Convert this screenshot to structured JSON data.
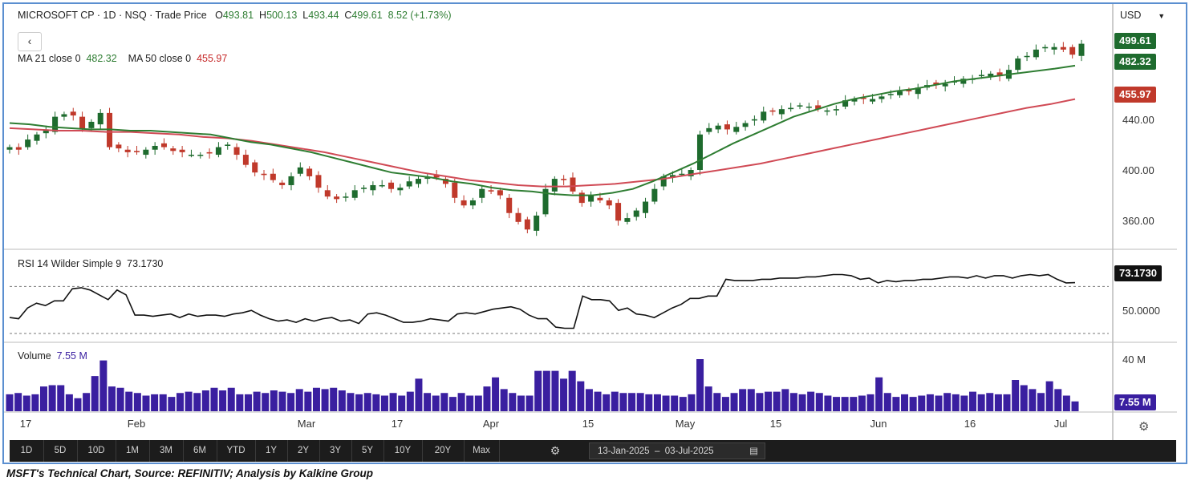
{
  "header": {
    "title": "MICROSOFT CP · 1D · NSQ · Trade Price",
    "open_label": "O",
    "open": "493.81",
    "high_label": "H",
    "high": "500.13",
    "low_label": "L",
    "low": "493.44",
    "close_label": "C",
    "close": "499.61",
    "change": "8.52 (+1.73%)",
    "ma21_label": "MA 21 close 0",
    "ma21_value": "482.32",
    "ma50_label": "MA 50 close 0",
    "ma50_value": "455.97",
    "back_icon": "chevron-left-icon"
  },
  "currency": "USD",
  "tags": {
    "last": "499.61",
    "ma21": "482.32",
    "ma50": "455.97",
    "rsi": "73.1730",
    "volume": "7.55 M"
  },
  "colors": {
    "up": "#1e6b2e",
    "down": "#c0392b",
    "ma21": "#2e7d32",
    "ma50": "#d04a55",
    "volume": "#3a1fa0",
    "frame": "#5b8fd0"
  },
  "rsi": {
    "label": "RSI 14 Wilder Simple 9",
    "value": "73.1730",
    "ref_label": "50.0000"
  },
  "volume_panel": {
    "label": "Volume",
    "value": "7.55 M",
    "tick": "40 M"
  },
  "toolbar": {
    "buttons": [
      "1D",
      "5D",
      "10D",
      "1M",
      "3M",
      "6M",
      "YTD",
      "1Y",
      "2Y",
      "3Y",
      "5Y",
      "10Y",
      "20Y",
      "Max"
    ],
    "date_from": "13-Jan-2025",
    "date_to": "03-Jul-2025",
    "gear_icon": "gear-icon",
    "calendar_icon": "calendar-icon"
  },
  "caption": "MSFT's Technical Chart, Source: REFINITIV; Analysis by Kalkine Group",
  "chart_data": [
    {
      "type": "candlestick",
      "title": "MICROSOFT CP · 1D · NSQ · Trade Price",
      "x_ticks": [
        "17",
        "Feb",
        "Mar",
        "17",
        "Apr",
        "15",
        "May",
        "15",
        "Jun",
        "16",
        "Jul"
      ],
      "y_ticks": [
        "360.00",
        "400.00",
        "440.00"
      ],
      "ylim": [
        338,
        512
      ],
      "series_close": [
        418,
        416,
        424,
        428,
        432,
        442,
        444,
        443,
        432,
        438,
        445,
        418,
        417,
        414,
        414,
        416,
        419,
        418,
        415,
        414,
        412,
        412,
        413,
        418,
        420,
        412,
        404,
        398,
        396,
        392,
        388,
        395,
        402,
        395,
        386,
        379,
        377,
        379,
        384,
        386,
        388,
        388,
        385,
        386,
        391,
        393,
        394,
        394,
        389,
        378,
        372,
        376,
        385,
        383,
        380,
        366,
        359,
        353,
        364,
        385,
        393,
        392,
        383,
        374,
        380,
        376,
        372,
        360,
        362,
        368,
        375,
        385,
        395,
        396,
        397,
        400,
        428,
        433,
        435,
        432,
        434,
        437,
        440,
        446,
        446,
        448,
        449,
        451,
        450,
        448,
        447,
        448,
        455,
        456,
        456,
        456,
        458,
        460,
        462,
        462,
        465,
        467,
        467,
        468,
        470,
        472,
        472,
        475,
        476,
        474,
        479,
        488,
        490,
        495,
        497,
        497,
        495,
        491,
        499.61
      ],
      "ma21": [
        437,
        436,
        434,
        433,
        432,
        432,
        431,
        431,
        430,
        429,
        428,
        425,
        422,
        420,
        417,
        414,
        410,
        406,
        402,
        398,
        396,
        394,
        391,
        389,
        386,
        384,
        383,
        381,
        380,
        380,
        382,
        385,
        391,
        398,
        405,
        413,
        421,
        428,
        435,
        442,
        447,
        452,
        456,
        459,
        462,
        464,
        467,
        470,
        472,
        474,
        476,
        478,
        480,
        482.32
      ],
      "ma50": [
        433,
        432,
        431,
        431,
        430,
        430,
        429,
        428,
        426,
        425,
        423,
        420,
        417,
        414,
        410,
        406,
        402,
        398,
        395,
        392,
        390,
        388,
        387,
        387,
        388,
        389,
        391,
        393,
        396,
        399,
        402,
        405,
        409,
        413,
        417,
        421,
        425,
        429,
        433,
        437,
        441,
        445,
        449,
        452,
        455.97
      ],
      "last_close": 499.61,
      "ma21_last": 482.32,
      "ma50_last": 455.97
    },
    {
      "type": "line",
      "title": "RSI 14 Wilder Simple 9",
      "values": [
        44,
        43,
        52,
        56,
        54,
        58,
        58,
        68,
        69,
        67,
        63,
        59,
        67,
        63,
        46,
        46,
        45,
        46,
        47,
        44,
        47,
        45,
        46,
        46,
        45,
        47,
        48,
        50,
        46,
        43,
        41,
        42,
        40,
        43,
        41,
        43,
        44,
        41,
        42,
        39,
        47,
        48,
        46,
        43,
        40,
        40,
        41,
        43,
        42,
        41,
        47,
        48,
        47,
        49,
        51,
        52,
        53,
        51,
        46,
        43,
        43,
        36,
        35,
        35,
        62,
        59,
        59,
        58,
        50,
        52,
        47,
        46,
        44,
        48,
        52,
        55,
        60,
        60,
        62,
        62,
        76,
        75,
        75,
        75,
        76,
        76,
        77,
        77,
        77,
        78,
        78,
        79,
        80,
        80,
        79,
        76,
        77,
        73,
        75,
        74,
        75,
        75,
        76,
        76,
        77,
        78,
        78,
        77,
        79,
        77,
        79,
        79,
        77,
        79,
        80,
        79,
        80,
        76,
        73,
        73.173
      ],
      "reference": 50,
      "last": 73.173
    },
    {
      "type": "bar",
      "title": "Volume",
      "tick_label": "40 M",
      "values_m": [
        13,
        14,
        12,
        13,
        19,
        20,
        20,
        13,
        10,
        14,
        27,
        39,
        19,
        18,
        15,
        14,
        12,
        13,
        13,
        11,
        14,
        15,
        14,
        16,
        18,
        16,
        18,
        13,
        13,
        15,
        14,
        16,
        15,
        14,
        17,
        15,
        18,
        17,
        18,
        16,
        14,
        13,
        14,
        13,
        12,
        14,
        12,
        15,
        25,
        14,
        12,
        14,
        11,
        14,
        12,
        12,
        19,
        26,
        17,
        14,
        12,
        12,
        31,
        31,
        31,
        25,
        31,
        23,
        17,
        15,
        13,
        15,
        14,
        14,
        14,
        13,
        13,
        12,
        12,
        11,
        13,
        40,
        19,
        14,
        11,
        14,
        17,
        17,
        14,
        15,
        15,
        17,
        14,
        13,
        15,
        14,
        12,
        11,
        11,
        11,
        12,
        13,
        26,
        14,
        11,
        13,
        11,
        12,
        13,
        12,
        14,
        13,
        12,
        15,
        13,
        14,
        13,
        13,
        24,
        20,
        17,
        14,
        23,
        17,
        12,
        7.55
      ],
      "last": 7.55
    }
  ]
}
